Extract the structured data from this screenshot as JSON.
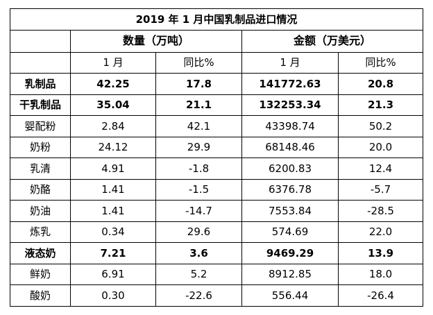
{
  "title": "2019 年 1 月中国乳制品进口情况",
  "header": {
    "quantity": "数量（万吨）",
    "amount": "金额（万美元）",
    "sub": [
      "1 月",
      "同比%",
      "1 月",
      "同比%"
    ]
  },
  "rows": [
    {
      "name": "乳制品",
      "qty": "42.25",
      "qty_yoy": "17.8",
      "amt": "141772.63",
      "amt_yoy": "20.8",
      "bold": true
    },
    {
      "name": "干乳制品",
      "qty": "35.04",
      "qty_yoy": "21.1",
      "amt": "132253.34",
      "amt_yoy": "21.3",
      "bold": true
    },
    {
      "name": "婴配粉",
      "qty": "2.84",
      "qty_yoy": "42.1",
      "amt": "43398.74",
      "amt_yoy": "50.2",
      "bold": false
    },
    {
      "name": "奶粉",
      "qty": "24.12",
      "qty_yoy": "29.9",
      "amt": "68148.46",
      "amt_yoy": "20.0",
      "bold": false
    },
    {
      "name": "乳清",
      "qty": "4.91",
      "qty_yoy": "-1.8",
      "amt": "6200.83",
      "amt_yoy": "12.4",
      "bold": false
    },
    {
      "name": "奶酪",
      "qty": "1.41",
      "qty_yoy": "-1.5",
      "amt": "6376.78",
      "amt_yoy": "-5.7",
      "bold": false
    },
    {
      "name": "奶油",
      "qty": "1.41",
      "qty_yoy": "-14.7",
      "amt": "7553.84",
      "amt_yoy": "-28.5",
      "bold": false
    },
    {
      "name": "炼乳",
      "qty": "0.34",
      "qty_yoy": "29.6",
      "amt": "574.69",
      "amt_yoy": "22.0",
      "bold": false
    },
    {
      "name": "液态奶",
      "qty": "7.21",
      "qty_yoy": "3.6",
      "amt": "9469.29",
      "amt_yoy": "13.9",
      "bold": true
    },
    {
      "name": "鲜奶",
      "qty": "6.91",
      "qty_yoy": "5.2",
      "amt": "8912.85",
      "amt_yoy": "18.0",
      "bold": false
    },
    {
      "name": "酸奶",
      "qty": "0.30",
      "qty_yoy": "-22.6",
      "amt": "556.44",
      "amt_yoy": "-26.4",
      "bold": false
    }
  ]
}
